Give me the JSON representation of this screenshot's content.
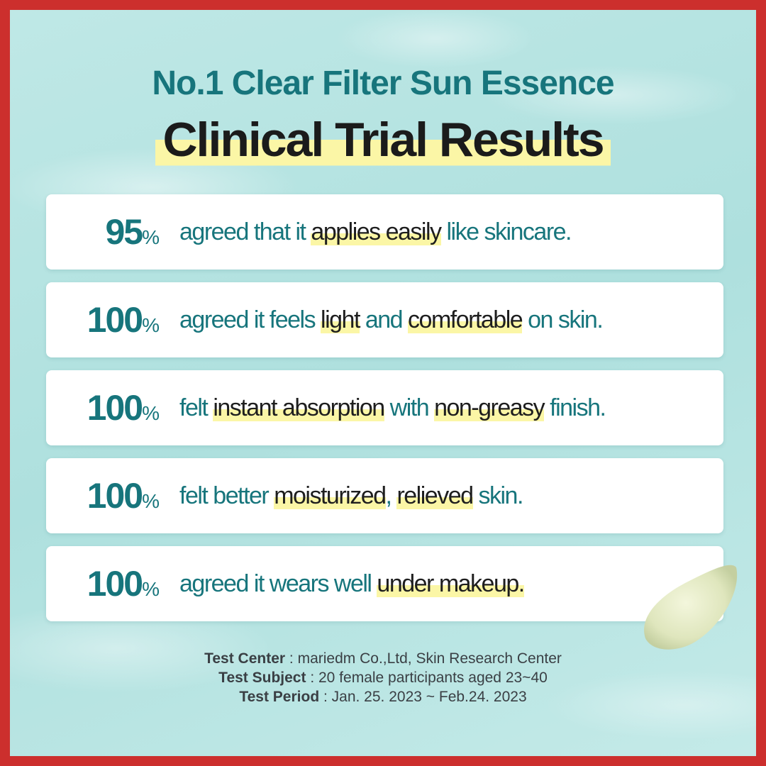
{
  "title": {
    "line1": "No.1 Clear Filter Sun Essence",
    "line2": "Clinical Trial Results"
  },
  "colors": {
    "accent": "#17757c",
    "highlight": "#fbf6a6",
    "frame": "#cc2f2d"
  },
  "results": [
    {
      "value": "95",
      "unit": "%",
      "segments": [
        {
          "text": "agreed that it ",
          "hl": false
        },
        {
          "text": "applies easily",
          "hl": true
        },
        {
          "text": " like skincare.",
          "hl": false
        }
      ]
    },
    {
      "value": "100",
      "unit": "%",
      "segments": [
        {
          "text": "agreed it feels ",
          "hl": false
        },
        {
          "text": "light",
          "hl": true
        },
        {
          "text": " and ",
          "hl": false
        },
        {
          "text": "comfortable",
          "hl": true
        },
        {
          "text": " on skin.",
          "hl": false
        }
      ]
    },
    {
      "value": "100",
      "unit": "%",
      "segments": [
        {
          "text": "felt ",
          "hl": false
        },
        {
          "text": "instant absorption",
          "hl": true
        },
        {
          "text": " with ",
          "hl": false
        },
        {
          "text": "non-greasy",
          "hl": true
        },
        {
          "text": " finish.",
          "hl": false
        }
      ]
    },
    {
      "value": "100",
      "unit": "%",
      "segments": [
        {
          "text": "felt better ",
          "hl": false
        },
        {
          "text": "moisturized",
          "hl": true
        },
        {
          "text": ", ",
          "hl": false
        },
        {
          "text": "relieved",
          "hl": true
        },
        {
          "text": " skin.",
          "hl": false
        }
      ]
    },
    {
      "value": "100",
      "unit": "%",
      "segments": [
        {
          "text": "agreed it wears well ",
          "hl": false
        },
        {
          "text": "under makeup.",
          "hl": true
        }
      ]
    }
  ],
  "footer": [
    {
      "label": "Test Center",
      "value": " : mariedm Co.,Ltd, Skin Research Center"
    },
    {
      "label": "Test Subject",
      "value": " : 20 female participants aged 23~40"
    },
    {
      "label": "Test Period",
      "value": " : Jan. 25. 2023 ~ Feb.24. 2023"
    }
  ]
}
